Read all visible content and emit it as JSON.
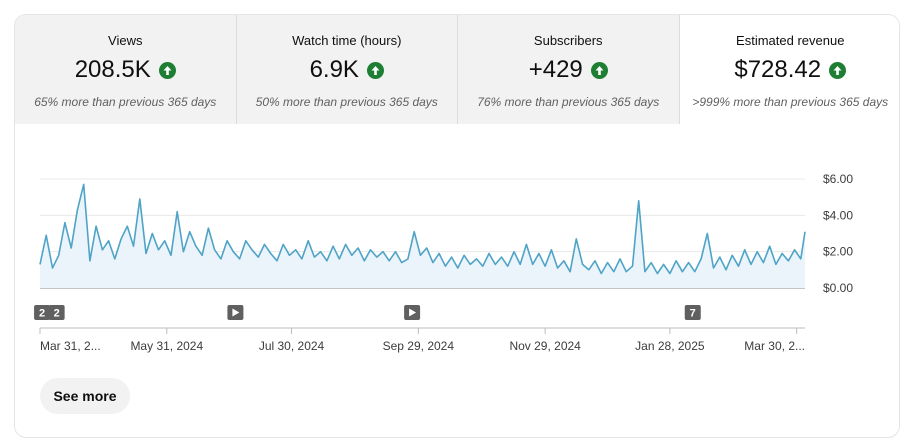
{
  "metrics": [
    {
      "label": "Views",
      "value": "208.5K",
      "sub": "65% more than previous 365 days",
      "icon": "arrow-up-icon"
    },
    {
      "label": "Watch time (hours)",
      "value": "6.9K",
      "sub": "50% more than previous 365 days",
      "icon": "arrow-up-icon"
    },
    {
      "label": "Subscribers",
      "value": "+429",
      "sub": "76% more than previous 365 days",
      "icon": "arrow-up-icon"
    },
    {
      "label": "Estimated revenue",
      "value": "$728.42",
      "sub": ">999% more than previous 365 days",
      "icon": "arrow-up-icon"
    }
  ],
  "see_more": "See more",
  "colors": {
    "line": "#4fa3c7",
    "area": "#eaf4fa",
    "up": "#1e7e34",
    "marker": "#606060"
  },
  "chart_data": {
    "type": "area",
    "ylabel": "",
    "yticks": [
      "$6.00",
      "$4.00",
      "$2.00",
      "$0.00"
    ],
    "ytick_values": [
      6,
      4,
      2,
      0
    ],
    "ylim": [
      0,
      6
    ],
    "xlim": [
      "2024-03-31",
      "2025-04-03"
    ],
    "xticks": [
      {
        "date": "2024-03-31",
        "label": "Mar 31, 2..."
      },
      {
        "date": "2024-05-31",
        "label": "May 31, 2024"
      },
      {
        "date": "2024-07-30",
        "label": "Jul 30, 2024"
      },
      {
        "date": "2024-09-29",
        "label": "Sep 29, 2024"
      },
      {
        "date": "2024-11-29",
        "label": "Nov 29, 2024"
      },
      {
        "date": "2025-01-28",
        "label": "Jan 28, 2025"
      },
      {
        "date": "2025-03-30",
        "label": "Mar 30, 2..."
      }
    ],
    "markers": [
      {
        "date": "2024-04-01",
        "label": "2",
        "kind": "count"
      },
      {
        "date": "2024-04-08",
        "label": "2",
        "kind": "count"
      },
      {
        "date": "2024-07-03",
        "label": "",
        "kind": "play"
      },
      {
        "date": "2024-09-26",
        "label": "",
        "kind": "play"
      },
      {
        "date": "2025-02-08",
        "label": "7",
        "kind": "count"
      }
    ],
    "series": [
      {
        "values": [
          {
            "date": "2024-03-31",
            "y": 1.3
          },
          {
            "date": "2024-04-03",
            "y": 2.9
          },
          {
            "date": "2024-04-06",
            "y": 1.1
          },
          {
            "date": "2024-04-09",
            "y": 1.8
          },
          {
            "date": "2024-04-12",
            "y": 3.6
          },
          {
            "date": "2024-04-15",
            "y": 2.2
          },
          {
            "date": "2024-04-18",
            "y": 4.3
          },
          {
            "date": "2024-04-21",
            "y": 5.7
          },
          {
            "date": "2024-04-24",
            "y": 1.5
          },
          {
            "date": "2024-04-27",
            "y": 3.4
          },
          {
            "date": "2024-04-30",
            "y": 2.1
          },
          {
            "date": "2024-05-03",
            "y": 2.6
          },
          {
            "date": "2024-05-06",
            "y": 1.6
          },
          {
            "date": "2024-05-09",
            "y": 2.7
          },
          {
            "date": "2024-05-12",
            "y": 3.4
          },
          {
            "date": "2024-05-15",
            "y": 2.3
          },
          {
            "date": "2024-05-18",
            "y": 4.9
          },
          {
            "date": "2024-05-21",
            "y": 1.9
          },
          {
            "date": "2024-05-24",
            "y": 3.0
          },
          {
            "date": "2024-05-27",
            "y": 2.1
          },
          {
            "date": "2024-05-30",
            "y": 2.6
          },
          {
            "date": "2024-06-02",
            "y": 1.8
          },
          {
            "date": "2024-06-05",
            "y": 4.2
          },
          {
            "date": "2024-06-08",
            "y": 2.0
          },
          {
            "date": "2024-06-11",
            "y": 3.1
          },
          {
            "date": "2024-06-14",
            "y": 2.3
          },
          {
            "date": "2024-06-17",
            "y": 1.8
          },
          {
            "date": "2024-06-20",
            "y": 3.3
          },
          {
            "date": "2024-06-23",
            "y": 2.1
          },
          {
            "date": "2024-06-26",
            "y": 1.6
          },
          {
            "date": "2024-06-29",
            "y": 2.6
          },
          {
            "date": "2024-07-02",
            "y": 2.0
          },
          {
            "date": "2024-07-05",
            "y": 1.6
          },
          {
            "date": "2024-07-08",
            "y": 2.6
          },
          {
            "date": "2024-07-11",
            "y": 2.1
          },
          {
            "date": "2024-07-14",
            "y": 1.7
          },
          {
            "date": "2024-07-17",
            "y": 2.4
          },
          {
            "date": "2024-07-20",
            "y": 1.9
          },
          {
            "date": "2024-07-23",
            "y": 1.5
          },
          {
            "date": "2024-07-26",
            "y": 2.4
          },
          {
            "date": "2024-07-29",
            "y": 1.8
          },
          {
            "date": "2024-08-01",
            "y": 2.1
          },
          {
            "date": "2024-08-04",
            "y": 1.6
          },
          {
            "date": "2024-08-07",
            "y": 2.6
          },
          {
            "date": "2024-08-10",
            "y": 1.7
          },
          {
            "date": "2024-08-13",
            "y": 2.0
          },
          {
            "date": "2024-08-16",
            "y": 1.5
          },
          {
            "date": "2024-08-19",
            "y": 2.3
          },
          {
            "date": "2024-08-22",
            "y": 1.6
          },
          {
            "date": "2024-08-25",
            "y": 2.4
          },
          {
            "date": "2024-08-28",
            "y": 1.8
          },
          {
            "date": "2024-08-31",
            "y": 2.2
          },
          {
            "date": "2024-09-03",
            "y": 1.5
          },
          {
            "date": "2024-09-06",
            "y": 2.1
          },
          {
            "date": "2024-09-09",
            "y": 1.7
          },
          {
            "date": "2024-09-12",
            "y": 2.0
          },
          {
            "date": "2024-09-15",
            "y": 1.5
          },
          {
            "date": "2024-09-18",
            "y": 2.0
          },
          {
            "date": "2024-09-21",
            "y": 1.4
          },
          {
            "date": "2024-09-24",
            "y": 1.6
          },
          {
            "date": "2024-09-27",
            "y": 3.1
          },
          {
            "date": "2024-09-30",
            "y": 1.8
          },
          {
            "date": "2024-10-03",
            "y": 2.2
          },
          {
            "date": "2024-10-06",
            "y": 1.4
          },
          {
            "date": "2024-10-09",
            "y": 1.9
          },
          {
            "date": "2024-10-12",
            "y": 1.2
          },
          {
            "date": "2024-10-15",
            "y": 1.7
          },
          {
            "date": "2024-10-18",
            "y": 1.1
          },
          {
            "date": "2024-10-21",
            "y": 1.8
          },
          {
            "date": "2024-10-24",
            "y": 1.3
          },
          {
            "date": "2024-10-27",
            "y": 1.6
          },
          {
            "date": "2024-10-30",
            "y": 1.2
          },
          {
            "date": "2024-11-02",
            "y": 1.9
          },
          {
            "date": "2024-11-05",
            "y": 1.3
          },
          {
            "date": "2024-11-08",
            "y": 1.7
          },
          {
            "date": "2024-11-11",
            "y": 1.2
          },
          {
            "date": "2024-11-14",
            "y": 2.0
          },
          {
            "date": "2024-11-17",
            "y": 1.3
          },
          {
            "date": "2024-11-20",
            "y": 2.4
          },
          {
            "date": "2024-11-23",
            "y": 1.3
          },
          {
            "date": "2024-11-26",
            "y": 1.9
          },
          {
            "date": "2024-11-29",
            "y": 1.2
          },
          {
            "date": "2024-12-02",
            "y": 2.1
          },
          {
            "date": "2024-12-05",
            "y": 1.1
          },
          {
            "date": "2024-12-08",
            "y": 1.5
          },
          {
            "date": "2024-12-11",
            "y": 0.9
          },
          {
            "date": "2024-12-14",
            "y": 2.7
          },
          {
            "date": "2024-12-17",
            "y": 1.3
          },
          {
            "date": "2024-12-20",
            "y": 1.0
          },
          {
            "date": "2024-12-23",
            "y": 1.5
          },
          {
            "date": "2024-12-26",
            "y": 0.8
          },
          {
            "date": "2024-12-29",
            "y": 1.4
          },
          {
            "date": "2025-01-01",
            "y": 0.9
          },
          {
            "date": "2025-01-04",
            "y": 1.6
          },
          {
            "date": "2025-01-07",
            "y": 0.9
          },
          {
            "date": "2025-01-10",
            "y": 1.2
          },
          {
            "date": "2025-01-13",
            "y": 4.8
          },
          {
            "date": "2025-01-16",
            "y": 0.9
          },
          {
            "date": "2025-01-19",
            "y": 1.4
          },
          {
            "date": "2025-01-22",
            "y": 0.8
          },
          {
            "date": "2025-01-25",
            "y": 1.3
          },
          {
            "date": "2025-01-28",
            "y": 0.8
          },
          {
            "date": "2025-01-31",
            "y": 1.5
          },
          {
            "date": "2025-02-03",
            "y": 0.9
          },
          {
            "date": "2025-02-06",
            "y": 1.4
          },
          {
            "date": "2025-02-09",
            "y": 0.9
          },
          {
            "date": "2025-02-12",
            "y": 1.6
          },
          {
            "date": "2025-02-15",
            "y": 3.0
          },
          {
            "date": "2025-02-18",
            "y": 1.1
          },
          {
            "date": "2025-02-21",
            "y": 1.7
          },
          {
            "date": "2025-02-24",
            "y": 1.0
          },
          {
            "date": "2025-02-27",
            "y": 1.8
          },
          {
            "date": "2025-03-02",
            "y": 1.2
          },
          {
            "date": "2025-03-05",
            "y": 2.1
          },
          {
            "date": "2025-03-08",
            "y": 1.3
          },
          {
            "date": "2025-03-11",
            "y": 2.0
          },
          {
            "date": "2025-03-14",
            "y": 1.4
          },
          {
            "date": "2025-03-17",
            "y": 2.3
          },
          {
            "date": "2025-03-20",
            "y": 1.3
          },
          {
            "date": "2025-03-23",
            "y": 1.9
          },
          {
            "date": "2025-03-26",
            "y": 1.5
          },
          {
            "date": "2025-03-29",
            "y": 2.1
          },
          {
            "date": "2025-04-01",
            "y": 1.6
          },
          {
            "date": "2025-04-03",
            "y": 3.1
          }
        ]
      }
    ]
  }
}
